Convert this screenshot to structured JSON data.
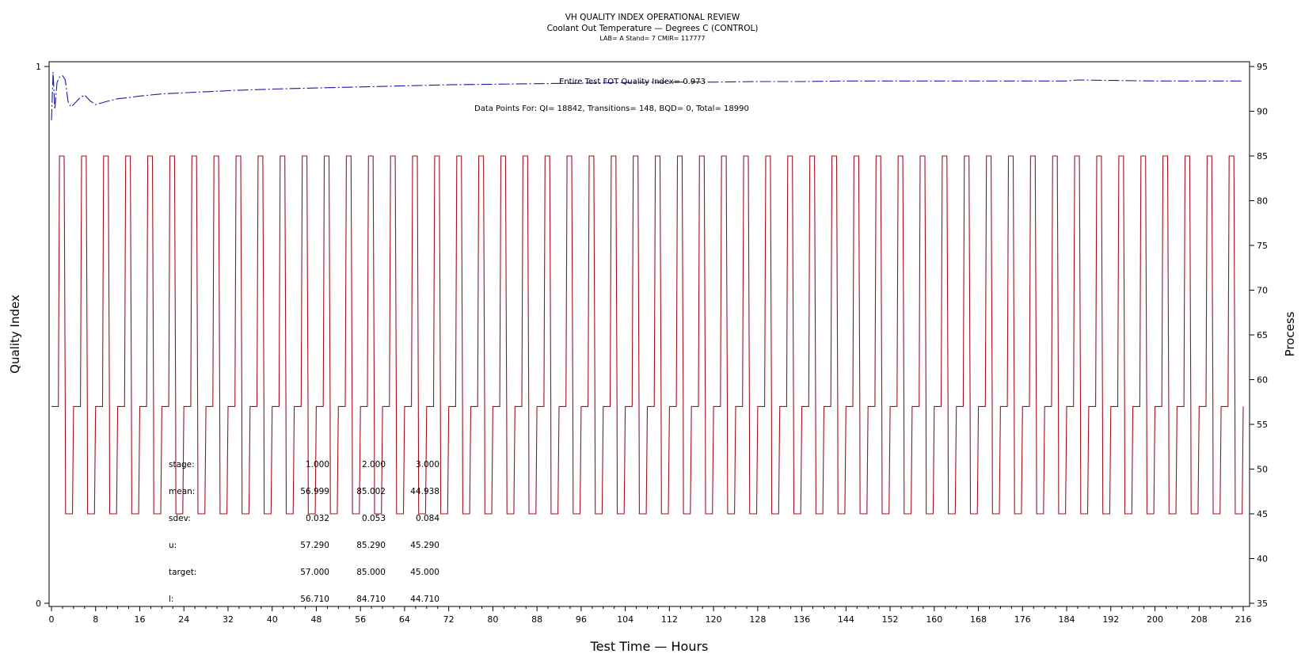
{
  "chart_data": {
    "type": "line",
    "title": "VH QUALITY INDEX OPERATIONAL REVIEW",
    "subtitle": "Coolant Out Temperature — Degrees C (CONTROL)",
    "subtitle2": "LAB= A Stand= 7 CMIR= 117777",
    "xlabel": "Test Time — Hours",
    "ylabel_left": "Quality Index",
    "ylabel_right": "Process",
    "xlim": [
      0,
      216
    ],
    "ylim_left": [
      0,
      1
    ],
    "ylim_right": [
      35,
      95
    ],
    "x_ticks": [
      0,
      8,
      16,
      24,
      32,
      40,
      48,
      56,
      64,
      72,
      80,
      88,
      96,
      104,
      112,
      120,
      128,
      136,
      144,
      152,
      160,
      168,
      176,
      184,
      192,
      200,
      208,
      216
    ],
    "y_ticks_left": [
      0,
      1
    ],
    "y_ticks_right": [
      35,
      40,
      45,
      50,
      55,
      60,
      65,
      70,
      75,
      80,
      85,
      90,
      95
    ],
    "grid": false,
    "annotations": {
      "qi_text": "Entire Test FOT Quality Index=   0.973",
      "points_text": "Data Points For: QI= 18842, Transitions=   148, BQD=     0, Total= 18990"
    },
    "stats_table": {
      "row_labels": [
        "stage:",
        "mean:",
        "sdev:",
        "u:",
        "target:",
        "l:"
      ],
      "columns": [
        [
          "1.000",
          "56.999",
          "0.032",
          "57.290",
          "57.000",
          "56.710"
        ],
        [
          "2.000",
          "85.002",
          "0.053",
          "85.290",
          "85.000",
          "84.710"
        ],
        [
          "3.000",
          "44.938",
          "0.084",
          "45.290",
          "45.000",
          "44.710"
        ]
      ]
    },
    "series": [
      {
        "axis": "left",
        "color": "#1a1aa8",
        "style": "dash-dot",
        "x": [
          0,
          0.3,
          0.6,
          1.0,
          1.5,
          2.0,
          2.5,
          3.0,
          3.5,
          4.0,
          5.0,
          6.0,
          7.0,
          8.0,
          9.0,
          10,
          12,
          14,
          16,
          20,
          24,
          28,
          32,
          40,
          48,
          56,
          64,
          72,
          80,
          88,
          96,
          104,
          112,
          120,
          128,
          136,
          144,
          152,
          160,
          168,
          176,
          184,
          186,
          192,
          200,
          208,
          216
        ],
        "y": [
          0.9,
          0.99,
          0.92,
          0.97,
          0.981,
          0.983,
          0.975,
          0.935,
          0.925,
          0.929,
          0.94,
          0.947,
          0.936,
          0.929,
          0.932,
          0.935,
          0.94,
          0.942,
          0.945,
          0.949,
          0.951,
          0.953,
          0.955,
          0.958,
          0.96,
          0.962,
          0.964,
          0.966,
          0.967,
          0.968,
          0.969,
          0.97,
          0.971,
          0.971,
          0.972,
          0.972,
          0.973,
          0.973,
          0.973,
          0.973,
          0.973,
          0.973,
          0.975,
          0.974,
          0.973,
          0.973,
          0.973
        ]
      },
      {
        "axis": "right",
        "color": "#a01020",
        "style": "solid",
        "cycle_hours": 4,
        "x_start": 0,
        "x_end": 216,
        "cycle_pattern": {
          "t": [
            0,
            1.25,
            1.45,
            2.3,
            2.5,
            2.55,
            3.8,
            4.0
          ],
          "y": [
            57,
            57,
            85,
            85,
            57,
            45,
            45,
            57
          ]
        }
      }
    ]
  }
}
